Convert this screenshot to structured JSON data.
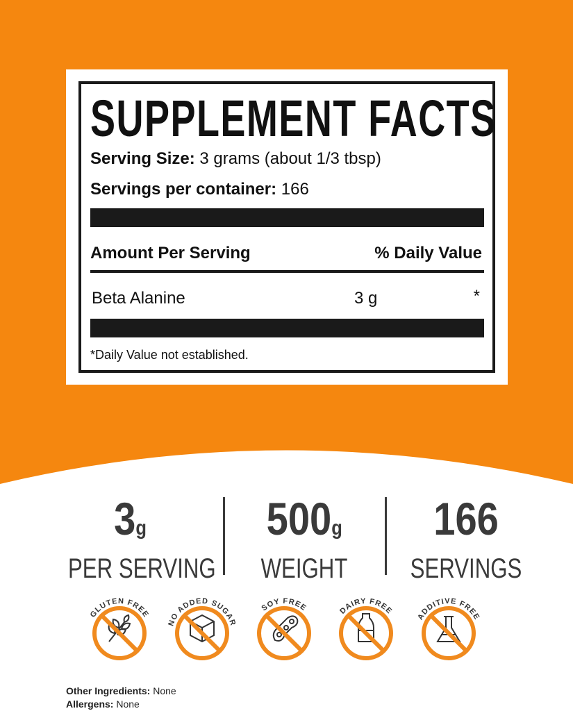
{
  "colors": {
    "accent": "#f5870f",
    "dark": "#1a1a1a",
    "stat_text": "#3a3a3a"
  },
  "label": {
    "title": "SUPPLEMENT FACTS",
    "serving_size_label": "Serving Size:",
    "serving_size_value": "3 grams (about 1/3 tbsp)",
    "servings_label": "Servings per container:",
    "servings_value": "166",
    "amount_header": "Amount Per Serving",
    "dv_header": "% Daily Value",
    "rows": [
      {
        "name": "Beta Alanine",
        "amount": "3 g",
        "dv": "*"
      }
    ],
    "footnote": "*Daily Value not established."
  },
  "stats": [
    {
      "number": "3",
      "unit": "g",
      "caption": "PER SERVING"
    },
    {
      "number": "500",
      "unit": "g",
      "caption": "WEIGHT"
    },
    {
      "number": "166",
      "unit": "",
      "caption": "SERVINGS"
    }
  ],
  "badges": [
    {
      "label": "GLUTEN FREE",
      "icon": "wheat-icon"
    },
    {
      "label": "NO ADDED SUGAR",
      "icon": "sugar-cube-icon"
    },
    {
      "label": "SOY FREE",
      "icon": "soybean-icon"
    },
    {
      "label": "DAIRY FREE",
      "icon": "milk-bottle-icon"
    },
    {
      "label": "ADDITIVE FREE",
      "icon": "flask-icon"
    }
  ],
  "other_ingredients_label": "Other Ingredients:",
  "other_ingredients_value": "None",
  "allergens_label": "Allergens:",
  "allergens_value": "None"
}
